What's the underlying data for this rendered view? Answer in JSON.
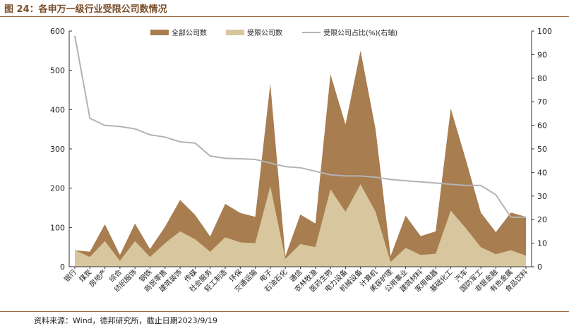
{
  "title": "图 24：各申万一级行业受限公司数情况",
  "source": "资料来源：Wind，德邦研究所，截止日期2023/9/19",
  "colors": {
    "total": "#a87d4f",
    "restricted": "#d8c79e",
    "ratio": "#b3b3b3"
  },
  "chart_data": {
    "type": "area",
    "categories": [
      "银行",
      "煤炭",
      "房地产",
      "综合",
      "纺织服饰",
      "钢铁",
      "商贸零售",
      "建筑装饰",
      "传媒",
      "社会服务",
      "轻工制造",
      "环保",
      "交通运输",
      "电子",
      "石油石化",
      "通信",
      "农林牧渔",
      "医药生物",
      "电力设备",
      "机械设备",
      "计算机",
      "美容护理",
      "公用事业",
      "建筑材料",
      "家用电器",
      "基础化工",
      "汽车",
      "国防军工",
      "非银金融",
      "有色金属",
      "食品饮料"
    ],
    "series": [
      {
        "name": "全部公司数",
        "axis": "left",
        "values": [
          42,
          38,
          108,
          30,
          110,
          45,
          102,
          170,
          132,
          77,
          160,
          137,
          127,
          466,
          27,
          133,
          110,
          490,
          362,
          550,
          350,
          27,
          130,
          78,
          90,
          403,
          273,
          138,
          88,
          138,
          127
        ]
      },
      {
        "name": "受限公司数",
        "axis": "left",
        "values": [
          42,
          25,
          65,
          15,
          65,
          25,
          60,
          90,
          70,
          38,
          75,
          62,
          60,
          205,
          20,
          58,
          50,
          197,
          140,
          210,
          140,
          12,
          48,
          30,
          33,
          143,
          98,
          50,
          32,
          42,
          28
        ]
      },
      {
        "name": "受限公司占比(%)(右轴)",
        "axis": "right",
        "values": [
          98,
          63,
          60,
          59.5,
          58.5,
          56,
          55,
          53,
          52.5,
          47,
          46,
          45.8,
          45.5,
          44,
          42.5,
          42,
          40.5,
          39,
          38.5,
          38.5,
          38,
          37,
          36.5,
          36,
          35.5,
          35,
          34.5,
          34.5,
          30.5,
          21,
          21
        ]
      }
    ],
    "ylim_left": [
      0,
      600
    ],
    "yticks_left": [
      0,
      100,
      200,
      300,
      400,
      500,
      600
    ],
    "ylim_right": [
      0,
      100
    ],
    "yticks_right": [
      0,
      10,
      20,
      30,
      40,
      50,
      60,
      70,
      80,
      90,
      100
    ],
    "legend_position": "top-center",
    "grid": false
  }
}
